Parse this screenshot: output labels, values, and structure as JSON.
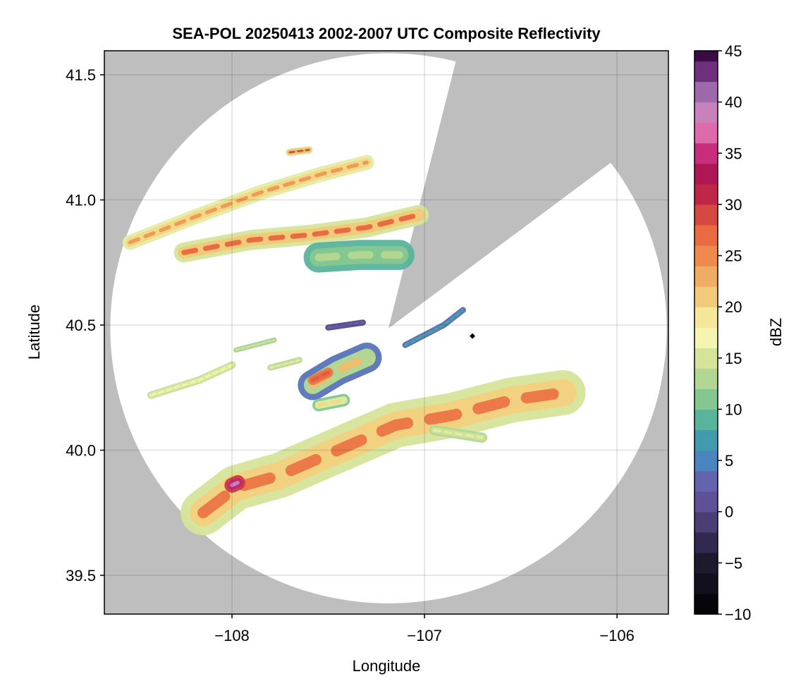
{
  "chart_data": {
    "type": "heatmap",
    "title": "SEA-POL 20250413 2002-2007 UTC Composite Reflectivity",
    "xlabel": "Longitude",
    "ylabel": "Latitude",
    "xlim": [
      -108.663,
      -105.733
    ],
    "ylim": [
      39.345,
      41.596
    ],
    "xticks": [
      -108,
      -107,
      -106
    ],
    "xtick_labels": [
      "−108",
      "−107",
      "−106"
    ],
    "yticks": [
      39.5,
      40.0,
      40.5,
      41.0,
      41.5
    ],
    "ytick_labels": [
      "39.5",
      "40.0",
      "40.5",
      "41.0",
      "41.5"
    ],
    "grid": true,
    "background_color": "#bebebe",
    "radar": {
      "lon": -107.187,
      "lat": 40.487,
      "range_km": 122,
      "blocked_azimuth_deg": [
        14,
        53.6
      ]
    },
    "marker": {
      "lon": -106.751,
      "lat": 40.456,
      "shape": "diamond",
      "color": "#000000"
    },
    "colorbar": {
      "label": "dBZ",
      "range": [
        -10,
        45
      ],
      "ticks": [
        -10,
        -5,
        0,
        5,
        10,
        15,
        20,
        25,
        30,
        35,
        40,
        45
      ],
      "tick_labels": [
        "−10",
        "−5",
        "0",
        "5",
        "10",
        "15",
        "20",
        "25",
        "30",
        "35",
        "40",
        "45"
      ],
      "stops": [
        [
          -10,
          "#000000"
        ],
        [
          -5,
          "#1e1a2e"
        ],
        [
          -2,
          "#3a3160"
        ],
        [
          0,
          "#5a4a8a"
        ],
        [
          2.5,
          "#6a5aaa"
        ],
        [
          5,
          "#4a85c0"
        ],
        [
          7.5,
          "#3fa0a8"
        ],
        [
          10,
          "#6cbf92"
        ],
        [
          12.5,
          "#a8d490"
        ],
        [
          15,
          "#d6e49a"
        ],
        [
          17.5,
          "#fbf9b6"
        ],
        [
          20,
          "#f3d985"
        ],
        [
          22.5,
          "#efb56a"
        ],
        [
          25,
          "#ee8a4e"
        ],
        [
          27.5,
          "#e6633f"
        ],
        [
          30,
          "#cc3844"
        ],
        [
          32.5,
          "#a8104a"
        ],
        [
          35,
          "#c92d7e"
        ],
        [
          37.5,
          "#e27ab6"
        ],
        [
          40,
          "#b588c0"
        ],
        [
          42.5,
          "#7a3a8a"
        ],
        [
          45,
          "#3d0a48"
        ]
      ]
    },
    "echoes": [
      {
        "path": [
          [
            -108.53,
            40.83
          ],
          [
            -108.2,
            40.93
          ],
          [
            -107.85,
            41.03
          ],
          [
            -107.55,
            41.1
          ],
          [
            -107.3,
            41.15
          ]
        ],
        "halfwidth_deg": 0.03,
        "dbz_edge": 16,
        "dbz_core": 24
      },
      {
        "path": [
          [
            -108.25,
            40.79
          ],
          [
            -107.9,
            40.84
          ],
          [
            -107.6,
            40.86
          ],
          [
            -107.3,
            40.89
          ],
          [
            -107.03,
            40.94
          ]
        ],
        "halfwidth_deg": 0.04,
        "dbz_edge": 15,
        "dbz_core": 27
      },
      {
        "path": [
          [
            -107.55,
            40.77
          ],
          [
            -107.34,
            40.78
          ],
          [
            -107.13,
            40.78
          ]
        ],
        "halfwidth_deg": 0.06,
        "dbz_edge": 9,
        "dbz_core": 13
      },
      {
        "path": [
          [
            -107.7,
            41.19
          ],
          [
            -107.6,
            41.2
          ]
        ],
        "halfwidth_deg": 0.015,
        "dbz_edge": 15,
        "dbz_core": 29
      },
      {
        "path": [
          [
            -108.15,
            39.75
          ],
          [
            -107.98,
            39.85
          ],
          [
            -107.75,
            39.9
          ],
          [
            -107.45,
            40.0
          ],
          [
            -107.15,
            40.1
          ],
          [
            -106.85,
            40.14
          ],
          [
            -106.55,
            40.2
          ],
          [
            -106.28,
            40.23
          ]
        ],
        "halfwidth_deg": 0.09,
        "dbz_edge": 15,
        "dbz_core": 26
      },
      {
        "path": [
          [
            -108.0,
            39.86
          ],
          [
            -107.97,
            39.87
          ]
        ],
        "halfwidth_deg": 0.03,
        "dbz_edge": 30,
        "dbz_core": 39
      },
      {
        "path": [
          [
            -107.58,
            40.26
          ],
          [
            -107.45,
            40.32
          ],
          [
            -107.3,
            40.37
          ]
        ],
        "halfwidth_deg": 0.06,
        "dbz_edge": 4,
        "dbz_core": 22
      },
      {
        "path": [
          [
            -107.58,
            40.28
          ],
          [
            -107.5,
            40.31
          ]
        ],
        "halfwidth_deg": 0.02,
        "dbz_edge": 26,
        "dbz_core": 28
      },
      {
        "path": [
          [
            -108.42,
            40.22
          ],
          [
            -108.17,
            40.28
          ],
          [
            -108.0,
            40.34
          ]
        ],
        "halfwidth_deg": 0.015,
        "dbz_edge": 14,
        "dbz_core": 17
      },
      {
        "path": [
          [
            -107.8,
            40.33
          ],
          [
            -107.65,
            40.36
          ]
        ],
        "halfwidth_deg": 0.012,
        "dbz_edge": 13,
        "dbz_core": 16
      },
      {
        "path": [
          [
            -107.98,
            40.4
          ],
          [
            -107.78,
            40.44
          ]
        ],
        "halfwidth_deg": 0.01,
        "dbz_edge": 12,
        "dbz_core": 15
      },
      {
        "path": [
          [
            -107.1,
            40.42
          ],
          [
            -106.9,
            40.5
          ],
          [
            -106.8,
            40.56
          ]
        ],
        "halfwidth_deg": 0.012,
        "dbz_edge": 3,
        "dbz_core": 8
      },
      {
        "path": [
          [
            -107.5,
            40.49
          ],
          [
            -107.32,
            40.51
          ]
        ],
        "halfwidth_deg": 0.012,
        "dbz_edge": 0,
        "dbz_core": 3
      },
      {
        "path": [
          [
            -107.55,
            40.18
          ],
          [
            -107.42,
            40.2
          ]
        ],
        "halfwidth_deg": 0.025,
        "dbz_edge": 11,
        "dbz_core": 20
      },
      {
        "path": [
          [
            -106.95,
            40.08
          ],
          [
            -106.7,
            40.05
          ]
        ],
        "halfwidth_deg": 0.02,
        "dbz_edge": 13,
        "dbz_core": 16
      }
    ]
  }
}
